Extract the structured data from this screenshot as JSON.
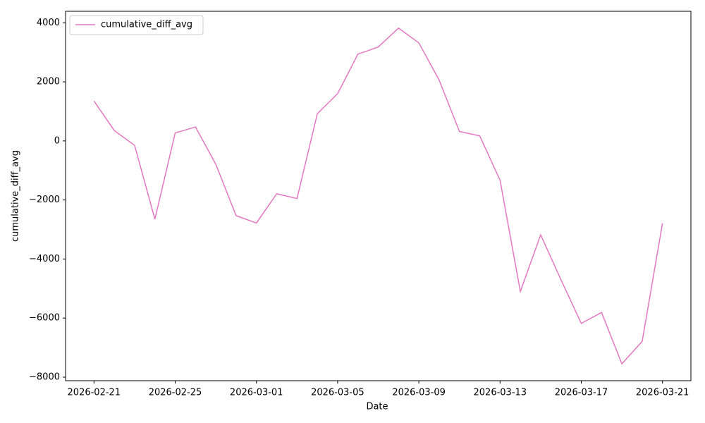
{
  "chart_data": {
    "type": "line",
    "xlabel": "Date",
    "ylabel": "cumulative_diff_avg",
    "x": [
      "2026-02-21",
      "2026-02-22",
      "2026-02-23",
      "2026-02-24",
      "2026-02-25",
      "2026-02-26",
      "2026-02-27",
      "2026-02-28",
      "2026-03-01",
      "2026-03-02",
      "2026-03-03",
      "2026-03-04",
      "2026-03-05",
      "2026-03-06",
      "2026-03-07",
      "2026-03-08",
      "2026-03-09",
      "2026-03-10",
      "2026-03-11",
      "2026-03-12",
      "2026-03-13",
      "2026-03-14",
      "2026-03-15",
      "2026-03-16",
      "2026-03-17",
      "2026-03-18",
      "2026-03-19",
      "2026-03-20",
      "2026-03-21"
    ],
    "series": [
      {
        "name": "cumulative_diff_avg",
        "color": "#e377c2",
        "values": [
          1350,
          350,
          -150,
          -2650,
          270,
          470,
          -790,
          -2530,
          -2780,
          -1790,
          -1950,
          920,
          1600,
          2940,
          3180,
          3820,
          3320,
          2060,
          320,
          170,
          -1330,
          -5100,
          -3180,
          -4700,
          -6180,
          -5810,
          -7550,
          -6790,
          -2790
        ]
      }
    ],
    "xticks": [
      "2026-02-21",
      "2026-02-25",
      "2026-03-01",
      "2026-03-05",
      "2026-03-09",
      "2026-03-13",
      "2026-03-17",
      "2026-03-21"
    ],
    "ylim": [
      -8120,
      4390
    ],
    "yticks": [
      {
        "value": -8000,
        "label": "−8000"
      },
      {
        "value": -6000,
        "label": "−6000"
      },
      {
        "value": -4000,
        "label": "−4000"
      },
      {
        "value": -2000,
        "label": "−2000"
      },
      0,
      2000,
      4000
    ],
    "legend": "upper left",
    "grid": false
  }
}
